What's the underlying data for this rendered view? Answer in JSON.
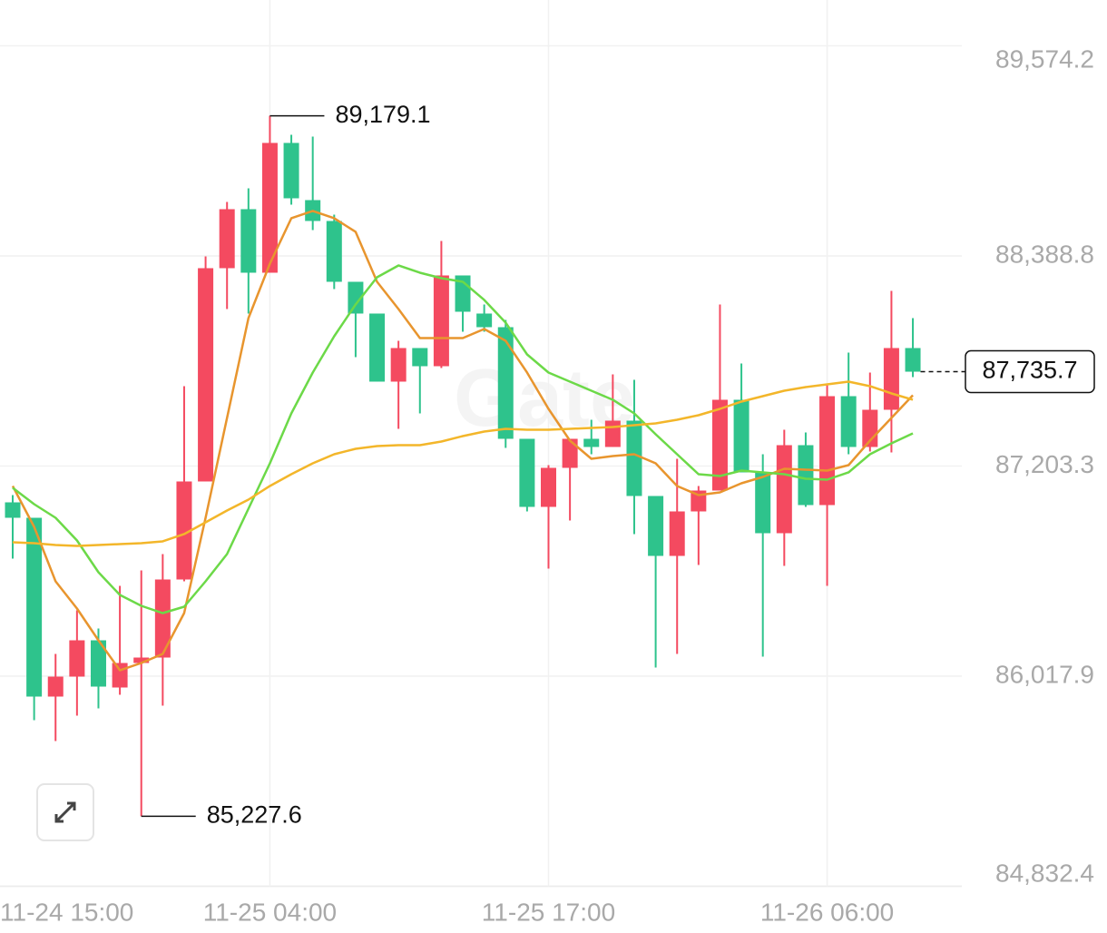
{
  "chart_data": {
    "type": "candlestick",
    "watermark": "Gate",
    "up_color": "#f44a60",
    "down_color": "#2ec38c",
    "candles": {
      "open": [
        86998.5,
        86911.4,
        85902.6,
        86015.3,
        86220.1,
        85953.8,
        86092.1,
        86122.8,
        86563.2,
        87116.3,
        88319.7,
        88652.6,
        88294.1,
        89026.4,
        88703.8,
        88586.0,
        88242.9,
        88063.7,
        87679.6,
        87869.1,
        87766.6,
        88278.7,
        88063.7,
        87986.8,
        87357.0,
        86972.9,
        87193.1,
        87357.0,
        87310.9,
        87459.4,
        87034.3,
        86696.3,
        86947.3,
        87065.1,
        87577.2,
        87167.5,
        86824.4,
        87321.1,
        86983.1,
        87597.6,
        87310.9,
        87520.8,
        87869.1
      ],
      "high": [
        87039.5,
        86911.4,
        86143.3,
        86389.1,
        86286.7,
        86527.4,
        86614.4,
        86706.6,
        87654.0,
        88386.3,
        88693.5,
        88770.4,
        89179.1,
        89072.5,
        89062.2,
        88621.8,
        88242.9,
        88063.7,
        87910.0,
        87869.1,
        88473.3,
        88278.7,
        88114.9,
        88027.8,
        87357.0,
        87208.4,
        87357.0,
        87464.5,
        87720.5,
        87689.8,
        87034.3,
        87244.3,
        87090.7,
        88114.9,
        87782.0,
        87269.9,
        87408.2,
        87392.8,
        87664.2,
        87843.5,
        87730.8,
        88191.7,
        88038.0
      ],
      "low": [
        86681.0,
        85769.4,
        85651.7,
        85795.1,
        85836.0,
        85912.8,
        85227.6,
        85851.4,
        86553.0,
        87116.3,
        88089.3,
        88063.7,
        88294.1,
        88678.2,
        88534.8,
        88201.9,
        87817.8,
        87679.6,
        87413.3,
        87500.3,
        87756.4,
        87961.2,
        87961.2,
        87305.7,
        86947.3,
        86624.7,
        86896.1,
        87269.9,
        87310.9,
        86819.3,
        86066.5,
        86143.3,
        86645.1,
        87065.1,
        87167.5,
        86127.9,
        86640.0,
        86972.9,
        86527.4,
        87269.9,
        87285.3,
        87280.1,
        87705.2
      ],
      "close": [
        86911.4,
        85902.6,
        86015.3,
        86220.1,
        85958.9,
        86092.1,
        86122.8,
        86563.2,
        87116.3,
        88319.7,
        88652.6,
        88294.1,
        89026.4,
        88714.0,
        88586.0,
        88242.9,
        88063.7,
        87679.6,
        87869.1,
        87766.6,
        88278.7,
        88073.9,
        87986.8,
        87357.0,
        86972.9,
        87193.1,
        87357.0,
        87310.9,
        87459.4,
        87034.3,
        86696.3,
        86947.3,
        87065.1,
        87577.2,
        87167.5,
        86824.4,
        87321.1,
        86983.1,
        87597.6,
        87310.9,
        87520.8,
        87869.1,
        87735.7
      ]
    },
    "series": [
      {
        "color": "#e8952e",
        "values": [
          87090.7,
          86860.2,
          86553.0,
          86399.3,
          86220.1,
          86051.1,
          86092.1,
          86143.3,
          86373.7,
          86911.4,
          87474.7,
          88038.0,
          88345.3,
          88601.4,
          88642.3,
          88601.4,
          88524.5,
          88242.9,
          88089.3,
          87925.4,
          87925.4,
          87925.4,
          87976.6,
          87910.0,
          87730.8,
          87525.9,
          87346.7,
          87244.3,
          87259.7,
          87269.9,
          87218.7,
          87090.7,
          87039.5,
          87054.8,
          87106.0,
          87141.9,
          87188.0,
          87182.8,
          87177.7,
          87208.4,
          87346.7,
          87474.7,
          87602.8
        ]
      },
      {
        "color": "#6cd948",
        "values": [
          87080.4,
          86988.2,
          86911.4,
          86783.4,
          86604.2,
          86476.1,
          86414.7,
          86373.7,
          86409.6,
          86553.0,
          86706.6,
          86962.6,
          87218.7,
          87500.3,
          87730.8,
          87935.6,
          88114.9,
          88268.5,
          88335.1,
          88294.1,
          88263.4,
          88242.9,
          88140.5,
          88012.4,
          87833.2,
          87730.8,
          87679.6,
          87628.4,
          87577.2,
          87500.3,
          87382.6,
          87269.9,
          87157.2,
          87147.0,
          87177.7,
          87167.5,
          87157.2,
          87131.6,
          87126.5,
          87167.5,
          87269.9,
          87331.4,
          87387.7
        ]
      },
      {
        "color": "#f3b62a",
        "values": [
          86773.2,
          86768.0,
          86757.8,
          86752.7,
          86757.8,
          86762.9,
          86768.0,
          86778.3,
          86819.3,
          86885.8,
          86952.4,
          87013.8,
          87090.7,
          87157.2,
          87218.7,
          87269.9,
          87300.6,
          87316.0,
          87321.1,
          87321.1,
          87341.6,
          87372.3,
          87397.9,
          87413.3,
          87408.2,
          87408.2,
          87413.3,
          87418.4,
          87423.5,
          87433.8,
          87444.0,
          87464.5,
          87490.1,
          87525.9,
          87566.9,
          87597.6,
          87628.4,
          87648.9,
          87664.2,
          87679.6,
          87654.0,
          87613.0,
          87577.2
        ]
      }
    ],
    "ylim": [
      84832.4,
      89574.2
    ],
    "yticks": [
      {
        "value": 84832.4,
        "label": "84,832.4"
      },
      {
        "value": 86017.9,
        "label": "86,017.9"
      },
      {
        "value": 87203.3,
        "label": "87,203.3"
      },
      {
        "value": 88388.8,
        "label": "88,388.8"
      },
      {
        "value": 89574.2,
        "label": "89,574.2"
      }
    ],
    "xticks": [
      {
        "value": -1,
        "label": "11-24 15:00"
      },
      {
        "value": 12,
        "label": "11-25 04:00"
      },
      {
        "value": 25,
        "label": "11-25 17:00"
      },
      {
        "value": 38,
        "label": "11-26 06:00"
      }
    ],
    "grid": true,
    "annotations": [
      {
        "value": 89179.1,
        "label": "89,179.1",
        "index": 12
      },
      {
        "value": 85227.6,
        "label": "85,227.6",
        "index": 6
      }
    ],
    "last_price": {
      "value": 87735.7,
      "label": "87,735.7"
    }
  }
}
